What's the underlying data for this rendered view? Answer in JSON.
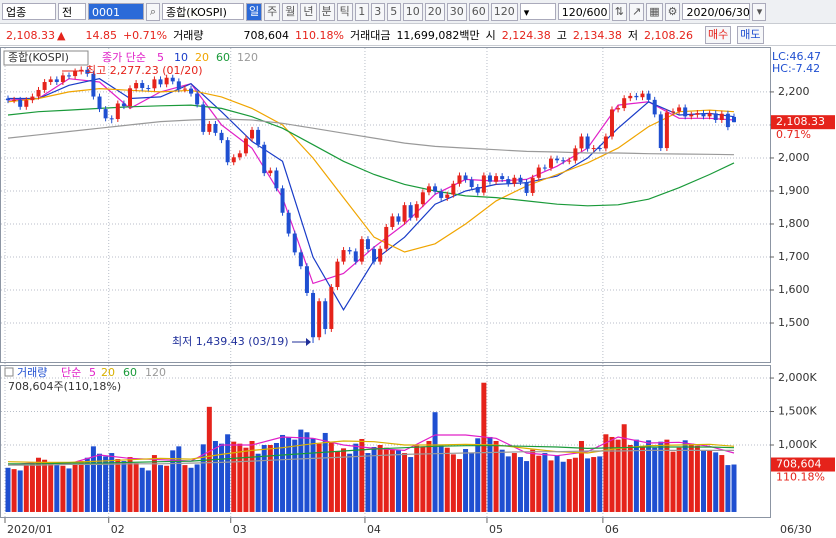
{
  "toolbar": {
    "market": "업종",
    "scope": "전",
    "code": "0001",
    "name": "종합(KOSPI)",
    "periods": [
      "일",
      "주",
      "월",
      "년",
      "분",
      "틱"
    ],
    "intervals": [
      "1",
      "3",
      "5",
      "10",
      "20",
      "30",
      "60",
      "120"
    ],
    "count": "120/600",
    "date": "2020/06/30"
  },
  "info_bar": {
    "price": "2,108.33",
    "arrow": "▲",
    "change": "14.85",
    "change_pct": "+0.71%",
    "volume_label": "거래량",
    "volume": "708,604",
    "volume_pct": "110.18%",
    "amount_label": "거래대금",
    "amount": "11,699,082백만",
    "open_label": "시",
    "open": "2,124.38",
    "high_label": "고",
    "high": "2,134.38",
    "low_label": "저",
    "low": "2,108.26",
    "buy": "매수",
    "sell": "매도"
  },
  "chart_data": [
    {
      "type": "candlestick",
      "title": "종합(KOSPI)",
      "up_color": "#e5231b",
      "down_color": "#1f4fd1",
      "grid": true,
      "categories": [
        "2020/01",
        null,
        null,
        null,
        null,
        null,
        null,
        null,
        null,
        null,
        null,
        null,
        null,
        null,
        null,
        null,
        null,
        "02",
        null,
        null,
        null,
        null,
        null,
        null,
        null,
        null,
        null,
        null,
        null,
        null,
        null,
        null,
        null,
        null,
        null,
        null,
        null,
        "03",
        null,
        null,
        null,
        null,
        null,
        null,
        null,
        null,
        null,
        null,
        null,
        null,
        null,
        null,
        null,
        null,
        null,
        null,
        null,
        null,
        null,
        "04",
        null,
        null,
        null,
        null,
        null,
        null,
        null,
        null,
        null,
        null,
        null,
        null,
        null,
        null,
        null,
        null,
        null,
        null,
        null,
        "05",
        null,
        null,
        null,
        null,
        null,
        null,
        null,
        null,
        null,
        null,
        null,
        null,
        null,
        null,
        null,
        null,
        null,
        null,
        "06",
        null,
        null,
        null,
        null,
        null,
        null,
        null,
        null,
        null,
        null,
        null,
        null,
        null,
        null,
        null,
        null,
        null,
        null,
        null,
        null,
        null
      ],
      "open": [
        2180,
        2175,
        2176,
        2155,
        2175,
        2186,
        2206,
        2230,
        2238,
        2230,
        2250,
        2248,
        2262,
        2267,
        2255,
        2186,
        2148,
        2120,
        2118,
        2165,
        2157,
        2211,
        2227,
        2212,
        2211,
        2238,
        2223,
        2243,
        2232,
        2208,
        2210,
        2195,
        2162,
        2079,
        2103,
        2076,
        2054,
        1987,
        2002,
        2014,
        2059,
        2085,
        2040,
        1954,
        1962,
        1908,
        1834,
        1771,
        1714,
        1672,
        1591,
        1457,
        1566,
        1482,
        1609,
        1686,
        1721,
        1717,
        1686,
        1754,
        1724,
        1686,
        1725,
        1791,
        1823,
        1807,
        1857,
        1819,
        1860,
        1896,
        1914,
        1898,
        1879,
        1889,
        1922,
        1947,
        1934,
        1912,
        1895,
        1947,
        1928,
        1945,
        1936,
        1922,
        1940,
        1927,
        1894,
        1940,
        1971,
        1970,
        1998,
        1993,
        1990,
        1992,
        2029,
        2065,
        2028,
        2030,
        2029,
        2065,
        2147,
        2151,
        2181,
        2188,
        2184,
        2195,
        2176,
        2132,
        2030,
        2138,
        2141,
        2153,
        2126,
        2131,
        2136,
        2126,
        2135,
        2115,
        2134,
        2124.38
      ],
      "high": [
        2189,
        2185,
        2185,
        2184,
        2195,
        2215,
        2239,
        2247,
        2247,
        2259,
        2259,
        2271,
        2277.23,
        2276,
        2264,
        2195,
        2157,
        2129,
        2174,
        2174,
        2220,
        2236,
        2236,
        2221,
        2247,
        2247,
        2252,
        2252,
        2241,
        2219,
        2219,
        2204,
        2171,
        2112,
        2112,
        2085,
        2063,
        2011,
        2023,
        2068,
        2094,
        2094,
        2049,
        1971,
        1971,
        1917,
        1843,
        1780,
        1723,
        1681,
        1600,
        1575,
        1575,
        1618,
        1695,
        1730,
        1730,
        1726,
        1763,
        1763,
        1733,
        1734,
        1800,
        1832,
        1832,
        1866,
        1866,
        1869,
        1905,
        1923,
        1923,
        1907,
        1898,
        1931,
        1956,
        1956,
        1943,
        1921,
        1956,
        1956,
        1954,
        1954,
        1945,
        1949,
        1949,
        1936,
        1949,
        1980,
        1980,
        2007,
        2007,
        2002,
        2001,
        2038,
        2074,
        2074,
        2039,
        2039,
        2074,
        2156,
        2160,
        2190,
        2197,
        2197,
        2204,
        2204,
        2185,
        2141,
        2147,
        2150,
        2162,
        2162,
        2140,
        2145,
        2145,
        2144,
        2144,
        2143,
        2143,
        2134.38
      ],
      "low": [
        2166,
        2166,
        2146,
        2146,
        2166,
        2177,
        2197,
        2221,
        2221,
        2221,
        2239,
        2239,
        2253,
        2246,
        2177,
        2139,
        2111,
        2105,
        2109,
        2148,
        2148,
        2202,
        2203,
        2202,
        2202,
        2214,
        2214,
        2223,
        2199,
        2199,
        2186,
        2153,
        2070,
        2070,
        2067,
        2045,
        1978,
        1978,
        1993,
        2005,
        2050,
        2031,
        1945,
        1945,
        1899,
        1825,
        1762,
        1705,
        1663,
        1582,
        1439.43,
        1448,
        1466,
        1473,
        1600,
        1677,
        1708,
        1677,
        1677,
        1715,
        1677,
        1677,
        1716,
        1782,
        1798,
        1798,
        1810,
        1810,
        1851,
        1887,
        1889,
        1870,
        1870,
        1880,
        1913,
        1925,
        1903,
        1886,
        1886,
        1919,
        1919,
        1927,
        1913,
        1913,
        1918,
        1885,
        1885,
        1931,
        1961,
        1961,
        1984,
        1981,
        1981,
        1983,
        2020,
        2019,
        2019,
        2020,
        2020,
        2056,
        2138,
        2142,
        2172,
        2175,
        2175,
        2167,
        2123,
        2021,
        2021,
        2129,
        2132,
        2117,
        2117,
        2122,
        2117,
        2117,
        2106,
        2106,
        2084,
        2108.26
      ],
      "close": [
        2175,
        2176,
        2155,
        2175,
        2186,
        2206,
        2230,
        2238,
        2230,
        2250,
        2248,
        2262,
        2267,
        2255,
        2186,
        2148,
        2120,
        2118,
        2165,
        2157,
        2211,
        2227,
        2212,
        2211,
        2238,
        2223,
        2243,
        2232,
        2208,
        2210,
        2195,
        2162,
        2079,
        2103,
        2076,
        2054,
        1987,
        2002,
        2014,
        2059,
        2085,
        2040,
        1954,
        1962,
        1908,
        1834,
        1771,
        1714,
        1672,
        1591,
        1457,
        1566,
        1482,
        1609,
        1686,
        1721,
        1717,
        1686,
        1754,
        1724,
        1686,
        1725,
        1791,
        1823,
        1807,
        1857,
        1819,
        1860,
        1896,
        1914,
        1898,
        1879,
        1889,
        1922,
        1947,
        1934,
        1912,
        1895,
        1947,
        1928,
        1945,
        1936,
        1922,
        1940,
        1927,
        1894,
        1940,
        1971,
        1970,
        1998,
        1993,
        1990,
        1992,
        2029,
        2065,
        2028,
        2030,
        2029,
        2065,
        2147,
        2151,
        2181,
        2188,
        2184,
        2195,
        2176,
        2132,
        2030,
        2138,
        2141,
        2153,
        2126,
        2131,
        2136,
        2126,
        2135,
        2115,
        2134,
        2093.48,
        2108.33
      ],
      "ylim": [
        1388,
        2327
      ],
      "yticks": [
        {
          "value": 1500,
          "label": "1,500"
        },
        {
          "value": 1600,
          "label": "1,600"
        },
        {
          "value": 1700,
          "label": "1,700"
        },
        {
          "value": 1800,
          "label": "1,800"
        },
        {
          "value": 1900,
          "label": "1,900"
        },
        {
          "value": 2000,
          "label": "2,000"
        },
        {
          "value": 2100,
          "label": "2,100"
        },
        {
          "value": 2200,
          "label": "2,200"
        }
      ],
      "ma_label": "종가 단순",
      "ma_x": [
        0,
        5,
        10,
        15,
        20,
        25,
        30,
        35,
        40,
        45,
        50,
        55,
        60,
        65,
        70,
        75,
        80,
        85,
        90,
        95,
        100,
        105,
        110,
        115,
        119
      ],
      "ma_series": [
        {
          "name": "5",
          "color": "#e020c8",
          "values": [
            2175,
            2180,
            2240,
            2230,
            2150,
            2200,
            2225,
            2100,
            2030,
            1880,
            1620,
            1650,
            1730,
            1800,
            1890,
            1935,
            1930,
            1935,
            1975,
            2030,
            2160,
            2170,
            2120,
            2120,
            2115
          ]
        },
        {
          "name": "10",
          "color": "#1a3cc8",
          "values": [
            2180,
            2180,
            2220,
            2240,
            2180,
            2185,
            2225,
            2140,
            2050,
            1990,
            1700,
            1540,
            1690,
            1760,
            1860,
            1900,
            1920,
            1925,
            1945,
            2000,
            2090,
            2170,
            2130,
            2135,
            2125
          ]
        },
        {
          "name": "20",
          "color": "#f0a500",
          "values": [
            2170,
            2180,
            2200,
            2210,
            2205,
            2200,
            2205,
            2185,
            2150,
            2100,
            2000,
            1880,
            1760,
            1715,
            1740,
            1800,
            1870,
            1915,
            1950,
            1985,
            2030,
            2095,
            2140,
            2145,
            2140
          ]
        },
        {
          "name": "60",
          "color": "#1a9a3a",
          "values": [
            2130,
            2140,
            2145,
            2150,
            2155,
            2158,
            2160,
            2150,
            2125,
            2090,
            2040,
            1990,
            1950,
            1920,
            1900,
            1885,
            1880,
            1870,
            1860,
            1855,
            1858,
            1875,
            1910,
            1950,
            1985
          ]
        },
        {
          "name": "120",
          "color": "#9a9a9a",
          "values": [
            2060,
            2070,
            2080,
            2090,
            2100,
            2110,
            2115,
            2118,
            2115,
            2105,
            2090,
            2075,
            2060,
            2045,
            2035,
            2030,
            2025,
            2020,
            2018,
            2015,
            2015,
            2013,
            2012,
            2011,
            2010
          ]
        }
      ],
      "annotations": {
        "high": "최고 2,277.23 (01/20)",
        "low": "최저 1,439.43 (03/19)"
      },
      "side_labels": [
        "LC:46.47",
        "HC:-7.42"
      ],
      "last_label": "2,108.33",
      "last_change_label": "0.71%"
    },
    {
      "type": "bar",
      "title": "거래량",
      "values": [
        660000,
        640000,
        620000,
        700000,
        720000,
        810000,
        780000,
        740000,
        700000,
        690000,
        650000,
        720000,
        760000,
        810000,
        980000,
        870000,
        830000,
        880000,
        790000,
        760000,
        820000,
        730000,
        660000,
        620000,
        850000,
        700000,
        690000,
        920000,
        980000,
        700000,
        660000,
        710000,
        1010000,
        1570000,
        1060000,
        1020000,
        1160000,
        1050000,
        1020000,
        960000,
        1060000,
        870000,
        1000000,
        1000000,
        1030000,
        1150000,
        1120000,
        1080000,
        1230000,
        1190000,
        1100000,
        1020000,
        1180000,
        1050000,
        910000,
        950000,
        870000,
        1020000,
        1090000,
        880000,
        970000,
        1000000,
        960000,
        930000,
        920000,
        880000,
        820000,
        990000,
        980000,
        1060000,
        1490000,
        990000,
        960000,
        860000,
        790000,
        940000,
        880000,
        1100000,
        1930000,
        1120000,
        1060000,
        930000,
        830000,
        880000,
        820000,
        760000,
        930000,
        840000,
        880000,
        770000,
        840000,
        750000,
        790000,
        810000,
        1060000,
        800000,
        820000,
        830000,
        1160000,
        1120000,
        1080000,
        1310000,
        1000000,
        1080000,
        980000,
        1070000,
        960000,
        1050000,
        1080000,
        900000,
        960000,
        1070000,
        1020000,
        990000,
        920000,
        920000,
        890000,
        850000,
        700000,
        708604
      ],
      "ylim": [
        -90000,
        2120000
      ],
      "yticks": [
        {
          "value": 1000000,
          "label": "1,000K"
        },
        {
          "value": 1500000,
          "label": "1,500K"
        },
        {
          "value": 2000000,
          "label": "2,000K"
        }
      ],
      "ma_label": "단순",
      "ma_x": [
        0,
        5,
        10,
        15,
        20,
        25,
        30,
        35,
        40,
        45,
        50,
        55,
        60,
        65,
        70,
        75,
        80,
        85,
        90,
        95,
        100,
        105,
        110,
        115,
        119
      ],
      "ma_series": [
        {
          "name": "5",
          "color": "#e020c8",
          "values": [
            700000,
            740000,
            720000,
            850000,
            800000,
            780000,
            760000,
            1000000,
            1000000,
            1120000,
            1100000,
            1000000,
            950000,
            920000,
            1150000,
            1150000,
            1100000,
            880000,
            840000,
            900000,
            1120000,
            1030000,
            1040000,
            980000,
            880000
          ]
        },
        {
          "name": "20",
          "color": "#d8b000",
          "values": [
            750000,
            740000,
            740000,
            760000,
            780000,
            800000,
            790000,
            860000,
            920000,
            960000,
            1020000,
            1060000,
            1050000,
            1000000,
            1000000,
            1010000,
            1000000,
            950000,
            900000,
            880000,
            950000,
            990000,
            1000000,
            1010000,
            980000
          ]
        },
        {
          "name": "60",
          "color": "#1a9a3a",
          "values": [
            720000,
            720000,
            730000,
            730000,
            740000,
            750000,
            760000,
            790000,
            820000,
            850000,
            880000,
            910000,
            940000,
            960000,
            980000,
            990000,
            990000,
            980000,
            970000,
            950000,
            960000,
            970000,
            970000,
            970000,
            960000
          ]
        },
        {
          "name": "120",
          "color": "#9a9a9a",
          "values": [
            700000,
            700000,
            710000,
            710000,
            720000,
            720000,
            730000,
            740000,
            760000,
            780000,
            800000,
            820000,
            840000,
            860000,
            870000,
            880000,
            890000,
            900000,
            900000,
            910000,
            910000,
            920000,
            920000,
            920000,
            920000
          ]
        }
      ],
      "info": "708,604주(110,18%)",
      "last_label": "708,604",
      "last_change_label": "110.18%",
      "x_end_label": "06/30"
    }
  ]
}
